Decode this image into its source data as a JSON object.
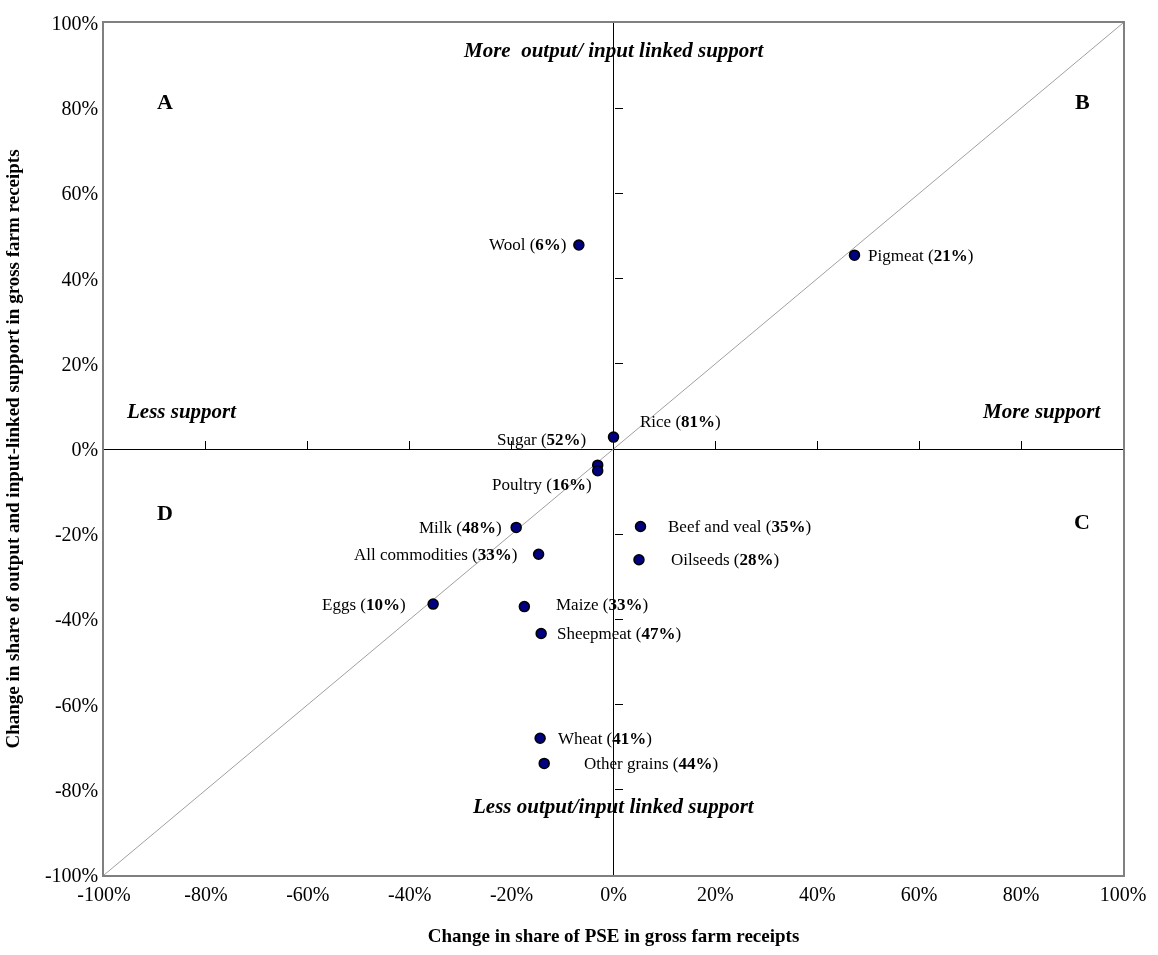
{
  "chart_data": {
    "type": "scatter",
    "xlabel": "Change in share of PSE in gross farm receipts",
    "ylabel": "Change in share of output and input-linked support in gross farm receipts",
    "xlim": [
      -100,
      100
    ],
    "ylim": [
      -100,
      100
    ],
    "xticks": [
      {
        "value": -100,
        "label": "-100%"
      },
      {
        "value": -80,
        "label": "-80%"
      },
      {
        "value": -60,
        "label": "-60%"
      },
      {
        "value": -40,
        "label": "-40%"
      },
      {
        "value": -20,
        "label": "-20%"
      },
      {
        "value": 0,
        "label": "0%"
      },
      {
        "value": 20,
        "label": "20%"
      },
      {
        "value": 40,
        "label": "40%"
      },
      {
        "value": 60,
        "label": "60%"
      },
      {
        "value": 80,
        "label": "80%"
      },
      {
        "value": 100,
        "label": "100%"
      }
    ],
    "yticks": [
      {
        "value": -100,
        "label": "-100%"
      },
      {
        "value": -80,
        "label": "-80%"
      },
      {
        "value": -60,
        "label": "-60%"
      },
      {
        "value": -40,
        "label": "-40%"
      },
      {
        "value": -20,
        "label": "-20%"
      },
      {
        "value": 0,
        "label": "0%"
      },
      {
        "value": 20,
        "label": "20%"
      },
      {
        "value": 40,
        "label": "40%"
      },
      {
        "value": 60,
        "label": "60%"
      },
      {
        "value": 80,
        "label": "80%"
      },
      {
        "value": 100,
        "label": "100%"
      }
    ],
    "marker": "circle",
    "series": [
      {
        "type": "line",
        "color": "#a0a0a0",
        "x": [
          -100,
          100
        ],
        "values": [
          -100,
          100
        ],
        "marker": "none",
        "line_style": "solid"
      },
      {
        "color": "#000080",
        "x": [
          -6.8,
          47.3,
          0,
          -3.1,
          -3.1,
          -19.1,
          -14.7,
          5.3,
          5.0,
          -35.4,
          -17.5,
          -14.2,
          -14.4,
          -13.6
        ],
        "values": [
          47.9,
          45.5,
          2.8,
          -3.8,
          -5.1,
          -18.4,
          -24.7,
          -18.2,
          -26.0,
          -36.4,
          -37.0,
          -43.3,
          -67.9,
          -73.8
        ]
      }
    ],
    "annotations": [
      "More  output/ input linked support",
      "Less output/input linked support",
      "Less support",
      "More support",
      "A",
      "B",
      "C",
      "D",
      {
        "text": "Wool (6%)",
        "x": -6.8,
        "y": 47.9
      },
      {
        "text": "Pigmeat (21%)",
        "x": 47.3,
        "y": 45.5
      },
      {
        "text": "Rice (81%)",
        "x": 0,
        "y": 2.8
      },
      {
        "text": "Sugar (52%)",
        "x": -3.1,
        "y": -3.8
      },
      {
        "text": "Poultry (16%)",
        "x": -3.1,
        "y": -5.1
      },
      {
        "text": "Milk (48%)",
        "x": -19.1,
        "y": -18.4
      },
      {
        "text": "All commodities (33%)",
        "x": -14.7,
        "y": -24.7
      },
      {
        "text": "Beef and veal (35%)",
        "x": 5.3,
        "y": -18.2
      },
      {
        "text": "Oilseeds (28%)",
        "x": 5.0,
        "y": -26.0
      },
      {
        "text": "Eggs (10%)",
        "x": -35.4,
        "y": -36.4
      },
      {
        "text": "Maize (33%)",
        "x": -17.5,
        "y": -37.0
      },
      {
        "text": "Sheepmeat (47%)",
        "x": -14.2,
        "y": -43.3
      },
      {
        "text": "Wheat (41%)",
        "x": -14.4,
        "y": -67.9
      },
      {
        "text": "Other grains (44%)",
        "x": -13.6,
        "y": -73.8
      }
    ]
  }
}
